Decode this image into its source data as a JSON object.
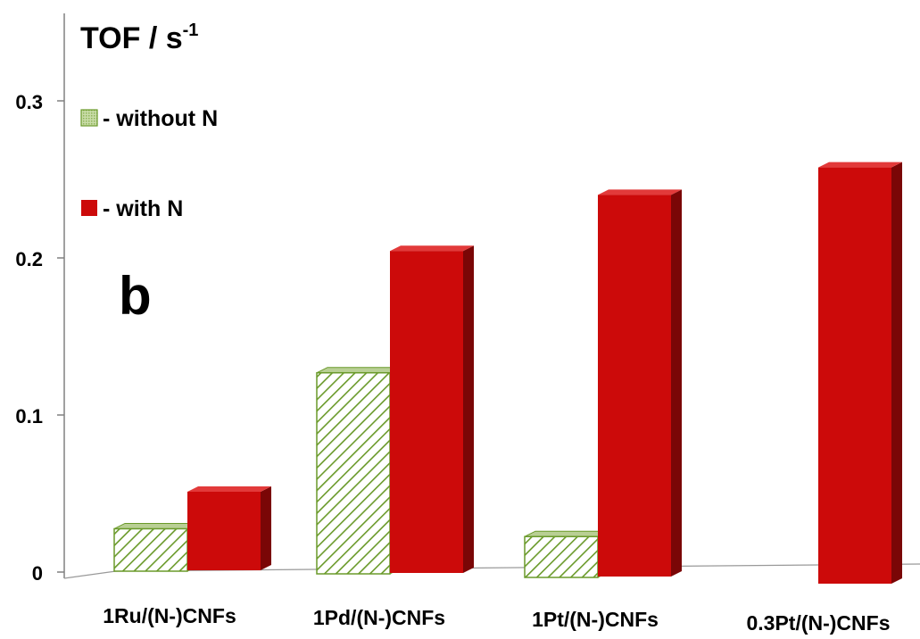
{
  "chart_data": {
    "type": "bar",
    "panel_label": "b",
    "ylabel": "TOF / s",
    "ylabel_superscript": "-1",
    "ylim": [
      0,
      0.3
    ],
    "yticks": [
      "0",
      "0.1",
      "0.2",
      "0.3"
    ],
    "categories": [
      "1Ru/(N-)CNFs",
      "1Pd/(N-)CNFs",
      "1Pt/(N-)CNFs",
      "0.3Pt/(N-)CNFs"
    ],
    "series": [
      {
        "name": "- without N",
        "values": [
          0.027,
          0.128,
          0.026,
          null
        ],
        "color": "#6a9a2a",
        "pattern": "hatched"
      },
      {
        "name": "- with N",
        "values": [
          0.05,
          0.205,
          0.243,
          0.265
        ],
        "color": "#cc0a0a",
        "pattern": "solid"
      }
    ],
    "legend_position": "top-left",
    "grid": false
  }
}
